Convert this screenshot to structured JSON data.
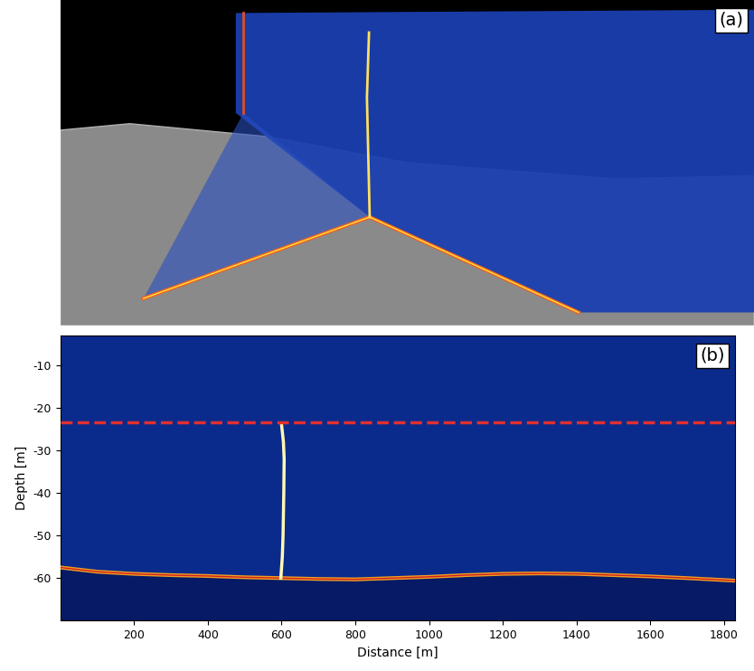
{
  "chart_data": [
    {
      "type": "scene",
      "label": "(a)"
    },
    {
      "type": "echogram",
      "label": "(b)",
      "x_label": "Distance [m]",
      "y_label": "Depth [m]",
      "xlim": [
        0,
        1830
      ],
      "ylim": [
        -70,
        -3
      ],
      "xticks": [
        200,
        400,
        600,
        800,
        1000,
        1200,
        1400,
        1600,
        1800
      ],
      "yticks": [
        -10,
        -20,
        -30,
        -40,
        -50,
        -60
      ],
      "series": [
        {
          "type": "seabed",
          "color": "#f0a020",
          "x": [
            0,
            100,
            200,
            300,
            400,
            500,
            600,
            700,
            800,
            900,
            1000,
            1100,
            1200,
            1300,
            1400,
            1500,
            1600,
            1700,
            1830
          ],
          "values": [
            -57.5,
            -58.5,
            -59,
            -59.3,
            -59.5,
            -59.8,
            -60,
            -60.2,
            -60.3,
            -60,
            -59.7,
            -59.3,
            -59,
            -58.9,
            -59,
            -59.3,
            -59.6,
            -60,
            -60.6
          ]
        },
        {
          "type": "plume",
          "color": "#fff8b0",
          "x": [
            598,
            602,
            604,
            606,
            607,
            605,
            600
          ],
          "values": [
            -60,
            -55,
            -50,
            -40,
            -32,
            -28,
            -24
          ]
        },
        {
          "type": "hline",
          "color": "#e03030",
          "line_style": "dashed",
          "value": -23.5
        }
      ]
    }
  ]
}
